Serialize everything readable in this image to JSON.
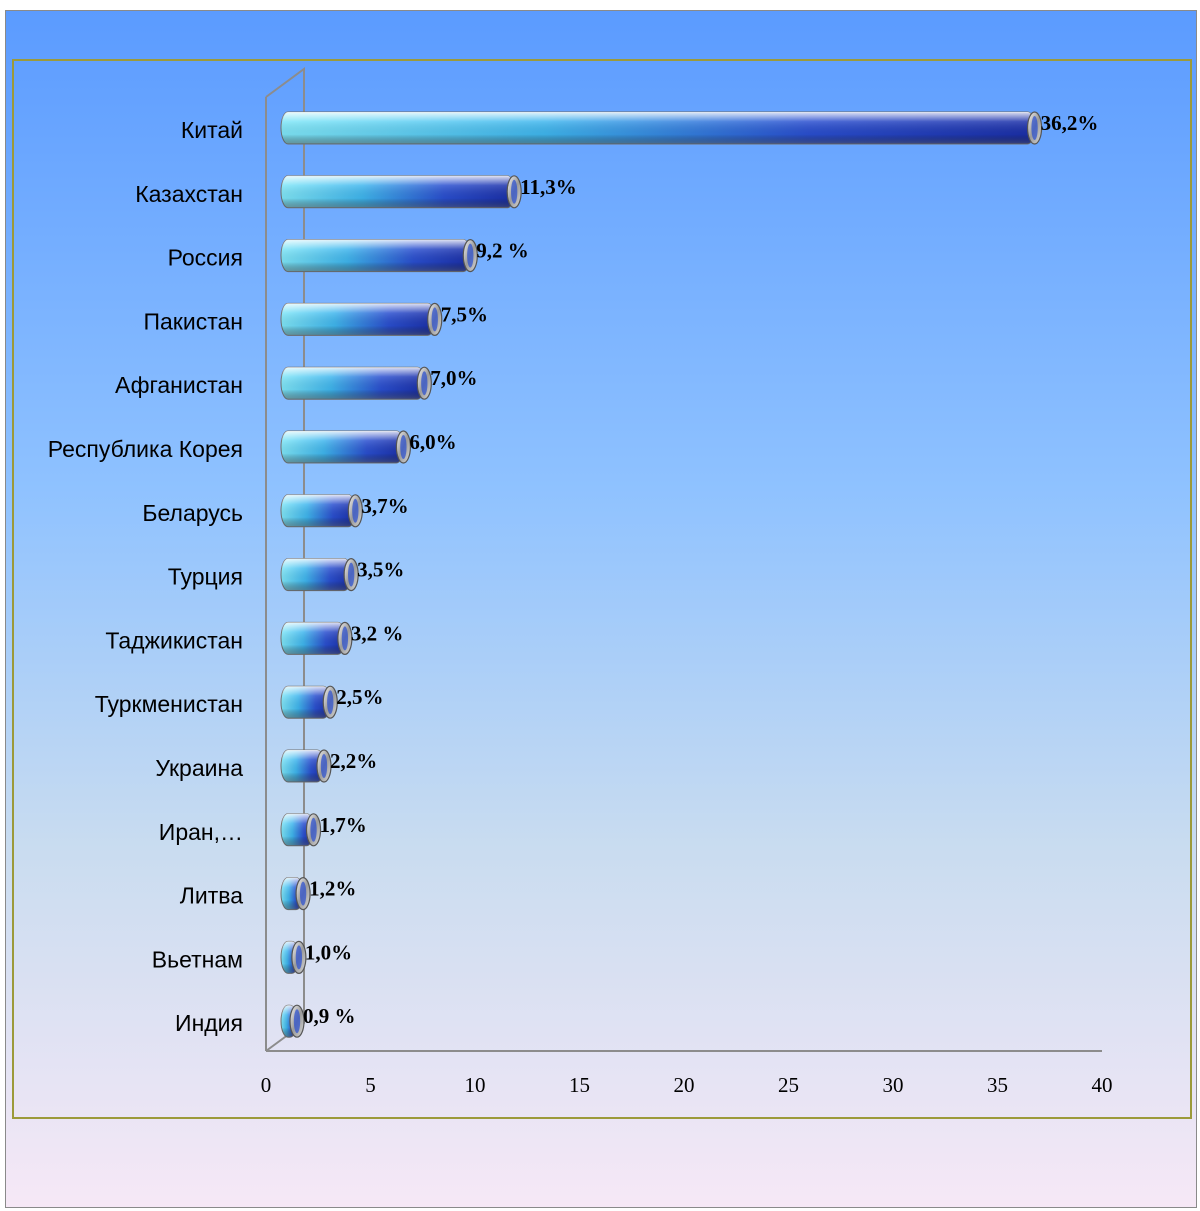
{
  "chart_data": {
    "type": "bar",
    "orientation": "horizontal",
    "categories": [
      "Китай",
      "Казахстан",
      "Россия",
      "Пакистан",
      "Афганистан",
      "Республика Корея",
      "Беларусь",
      "Турция",
      "Таджикистан",
      "Туркменистан",
      "Украина",
      "Иран,…",
      "Литва",
      "Вьетнам",
      "Индия"
    ],
    "values": [
      36.2,
      11.3,
      9.2,
      7.5,
      7.0,
      6.0,
      3.7,
      3.5,
      3.2,
      2.5,
      2.2,
      1.7,
      1.2,
      1.0,
      0.9
    ],
    "value_labels": [
      "36,2%",
      "11,3%",
      "9,2 %",
      "7,5%",
      "7,0%",
      "6,0%",
      "3,7%",
      "3,5%",
      "3,2 %",
      "2,5%",
      "2,2%",
      "1,7%",
      "1,2%",
      "1,0%",
      "0,9 %"
    ],
    "xlim": [
      0,
      40
    ],
    "x_ticks": [
      "0",
      "5",
      "10",
      "15",
      "20",
      "25",
      "30",
      "35",
      "40"
    ],
    "grid": false,
    "legend": "none",
    "bar_style": "3d-cylinder"
  },
  "colors": {
    "background_top": "#5b9bff",
    "background_bottom": "#f6e8f6",
    "frame_border": "#9c9a3a",
    "axis": "#8c8c8c",
    "bar_dark": "#1b2fa8",
    "bar_light": "#6ee0f5"
  }
}
